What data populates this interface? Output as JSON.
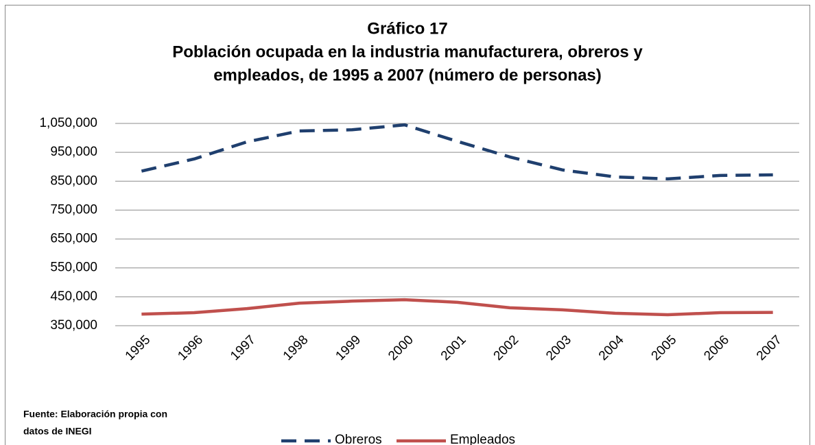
{
  "chart_data": {
    "type": "line",
    "title": [
      "Gráfico 17",
      "Población ocupada en la industria manufacturera, obreros y",
      "empleados, de 1995 a 2007 (número de personas)"
    ],
    "source": [
      "Fuente: Elaboración propia con",
      "datos de INEGI"
    ],
    "categories": [
      "1995",
      "1996",
      "1997",
      "1998",
      "1999",
      "2000",
      "2001",
      "2002",
      "2003",
      "2004",
      "2005",
      "2006",
      "2007"
    ],
    "series": [
      {
        "name": "Obreros",
        "color": "#1f3f6e",
        "line_style": "dashed",
        "values": [
          885000,
          927000,
          986000,
          1024000,
          1028000,
          1045000,
          988000,
          934000,
          889000,
          865000,
          858000,
          870000,
          872000
        ]
      },
      {
        "name": "Empleados",
        "color": "#c0504d",
        "line_style": "solid",
        "values": [
          390000,
          395000,
          409000,
          428000,
          435000,
          440000,
          431000,
          412000,
          405000,
          393000,
          388000,
          395000,
          396000
        ]
      }
    ],
    "ylim": [
      350000,
      1050000
    ],
    "yticks": [
      {
        "value": 350000,
        "label": "350,000"
      },
      {
        "value": 450000,
        "label": "450,000"
      },
      {
        "value": 550000,
        "label": "550,000"
      },
      {
        "value": 650000,
        "label": "650,000"
      },
      {
        "value": 750000,
        "label": "750,000"
      },
      {
        "value": 850000,
        "label": "850,000"
      },
      {
        "value": 950000,
        "label": "950,000"
      },
      {
        "value": 1050000,
        "label": "1,050,000"
      }
    ],
    "grid": true,
    "legend": "bottom"
  }
}
